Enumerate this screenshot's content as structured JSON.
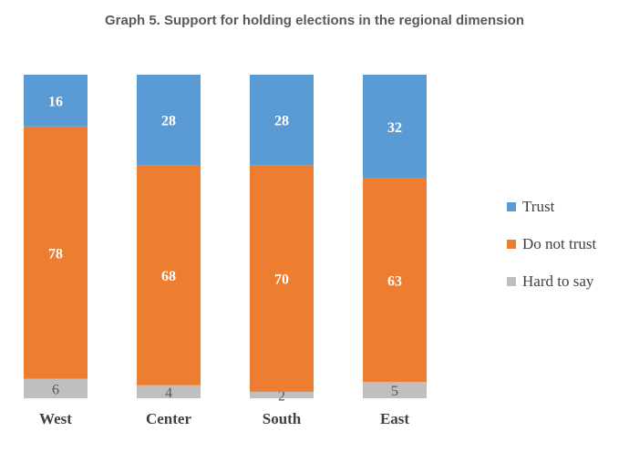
{
  "chart_data": {
    "type": "bar",
    "stacked": true,
    "title": "Graph 5. Support for holding elections in the regional dimension",
    "categories": [
      "West",
      "Center",
      "South",
      "East"
    ],
    "series": [
      {
        "name": "Hard to say",
        "values": [
          6,
          4,
          2,
          5
        ],
        "color": "#bfbfbf",
        "label_color": "#595959"
      },
      {
        "name": "Do not trust",
        "values": [
          78,
          68,
          70,
          63
        ],
        "color": "#ed7d31",
        "label_color": "#ffffff"
      },
      {
        "name": "Trust",
        "values": [
          16,
          28,
          28,
          32
        ],
        "color": "#5b9bd5",
        "label_color": "#ffffff"
      }
    ],
    "legend_order": [
      "Trust",
      "Do not trust",
      "Hard to say"
    ],
    "legend_placement": "right",
    "ylim": [
      0,
      100
    ],
    "grid": false
  }
}
